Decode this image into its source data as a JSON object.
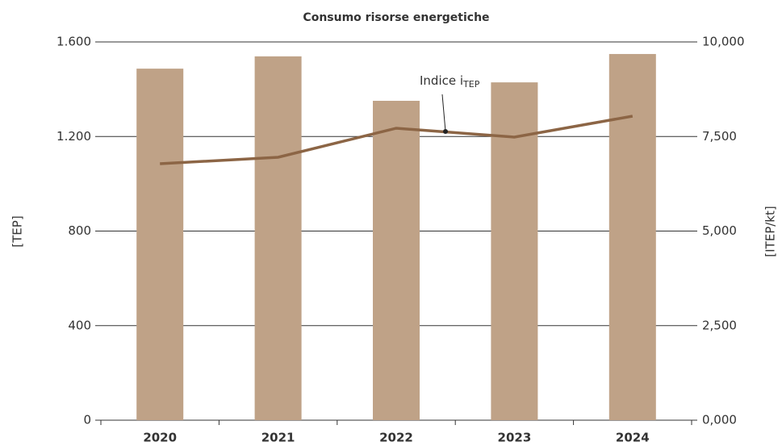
{
  "chart_data": {
    "type": "bar_line",
    "title": "Consumo risorse energetiche",
    "categories": [
      "2020",
      "2021",
      "2022",
      "2023",
      "2024"
    ],
    "series": [
      {
        "type": "bar",
        "color": "#bfa287",
        "values": [
          1487,
          1539,
          1351,
          1429,
          1549
        ]
      },
      {
        "type": "line",
        "axis": "y2",
        "color": "#8c6545",
        "values": [
          6780,
          6951,
          7719,
          7484,
          8038
        ]
      }
    ],
    "ylabel": "[TEP]",
    "y2label": "[ITEP/kt]",
    "ylim": [
      0,
      1600
    ],
    "yticks": [
      0,
      400,
      800,
      {
        "value": 1200,
        "label": "1.200"
      },
      {
        "value": 1600,
        "label": "1.600"
      }
    ],
    "y2lim": [
      0,
      10000
    ],
    "y2ticks": [
      {
        "value": 0,
        "label": "0,000"
      },
      {
        "value": 2500,
        "label": "2,500"
      },
      {
        "value": 5000,
        "label": "5,000"
      },
      {
        "value": 7500,
        "label": "7,500"
      },
      {
        "value": 10000,
        "label": "10,000"
      }
    ],
    "grid": true,
    "annotation": {
      "text": "Indice i",
      "sub": "TEP"
    }
  }
}
